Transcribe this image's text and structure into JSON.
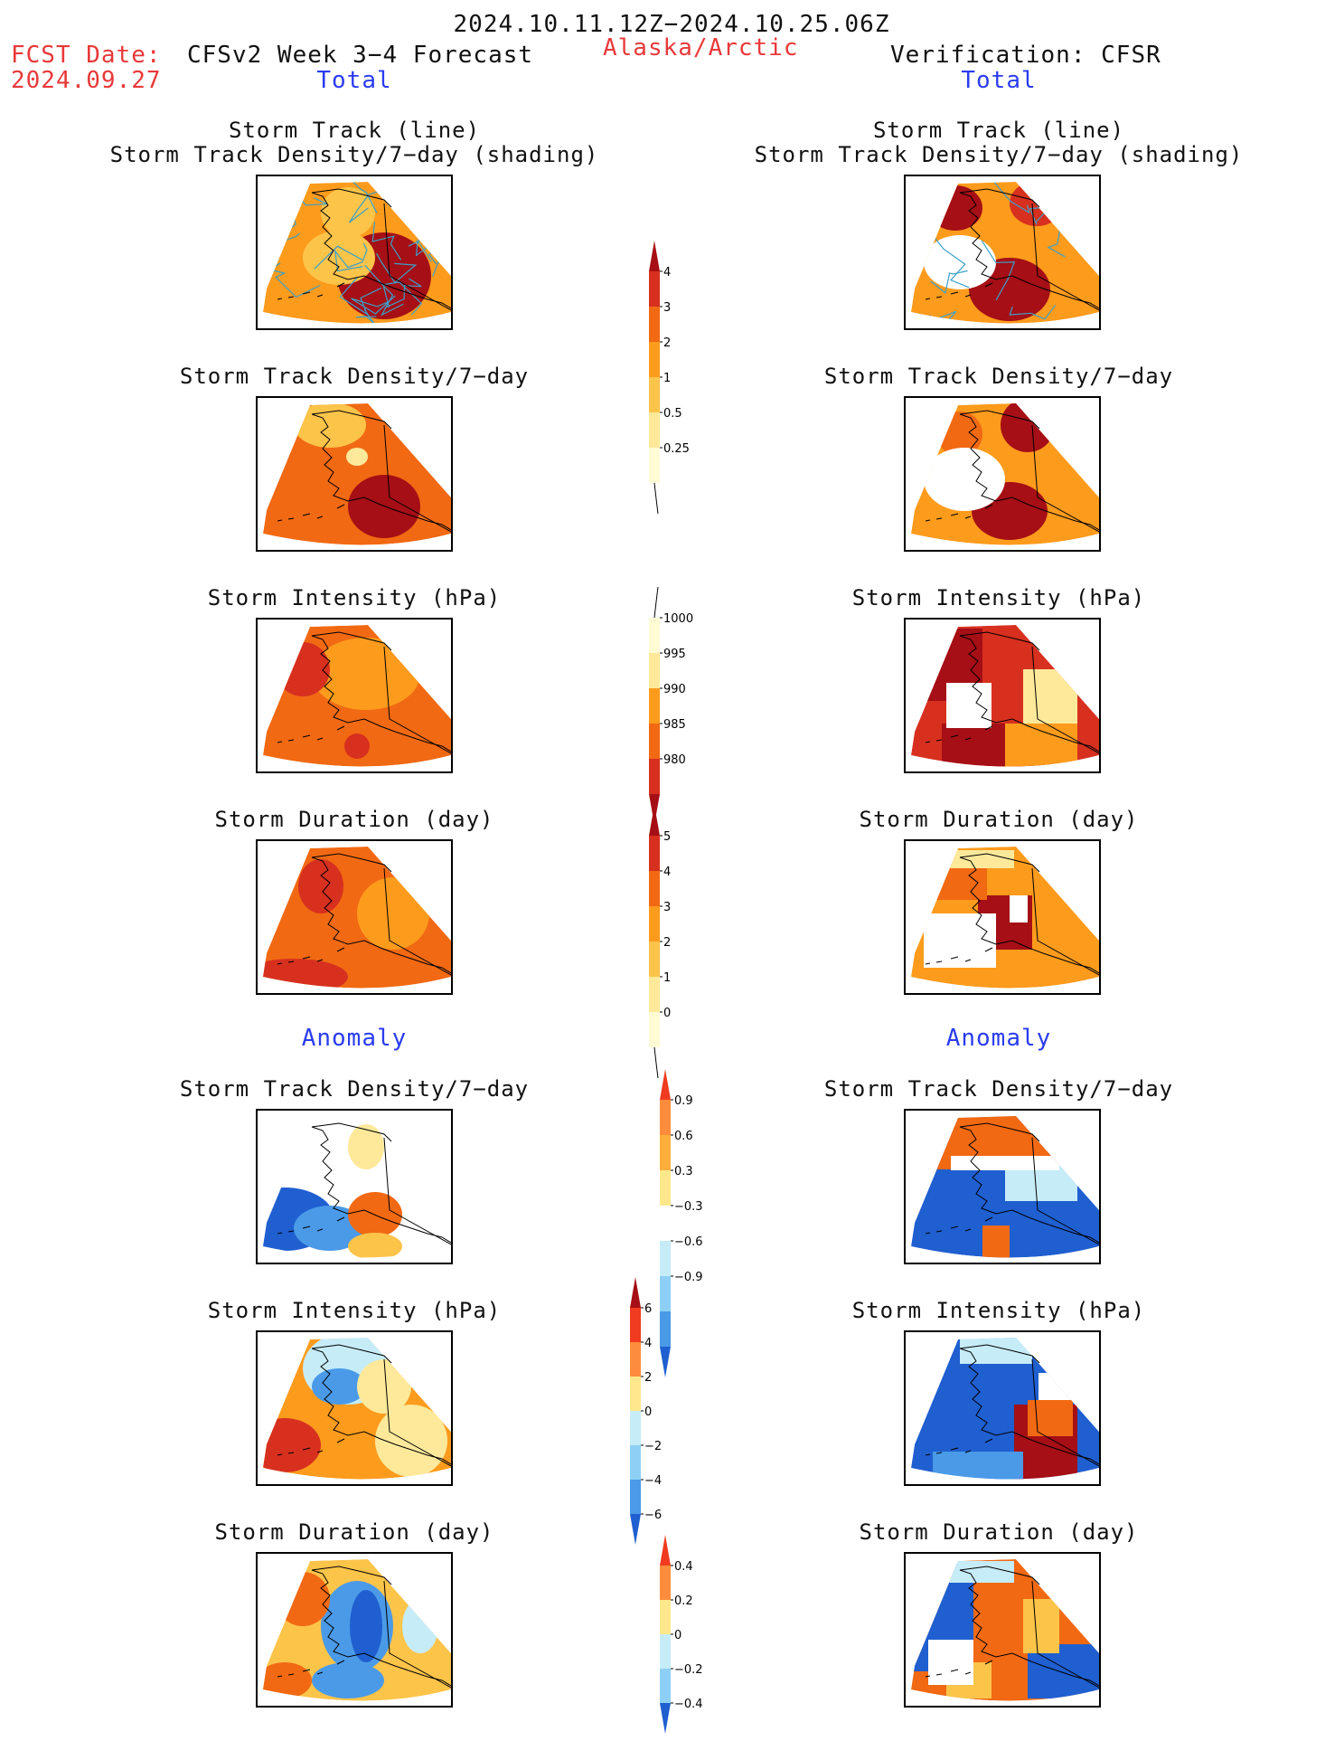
{
  "header": {
    "period": "2024.10.11.12Z−2024.10.25.06Z",
    "fcst_label": "FCST Date:",
    "fcst_date": "2024.09.27",
    "model_title": "CFSv2 Week 3−4 Forecast",
    "region": "Alaska/Arctic",
    "verification": "Verification: CFSR",
    "left_total": "Total",
    "right_total": "Total",
    "left_anomaly": "Anomaly",
    "right_anomaly": "Anomaly"
  },
  "panels": {
    "track_line": "Storm Track (line)",
    "track_shading": "Storm Track Density/7−day (shading)",
    "track_density": "Storm Track Density/7−day",
    "intensity": "Storm Intensity (hPa)",
    "duration": "Storm Duration (day)"
  },
  "colorbars": {
    "density_total": {
      "labels": [
        "4",
        "3",
        "2",
        "1",
        "0.5",
        "0.25"
      ],
      "colors": [
        "#a50f15",
        "#d7301f",
        "#f16913",
        "#fd9b1d",
        "#fdc44a",
        "#fee99a",
        "#fffbd5"
      ]
    },
    "intensity_total": {
      "labels": [
        "1000",
        "995",
        "990",
        "985",
        "980"
      ],
      "colors": [
        "#fffbd5",
        "#fee99a",
        "#fd9b1d",
        "#f16913",
        "#d7301f",
        "#a50f15"
      ]
    },
    "duration_total": {
      "labels": [
        "5",
        "4",
        "3",
        "2",
        "1",
        "0"
      ],
      "colors": [
        "#a50f15",
        "#d7301f",
        "#f16913",
        "#fd9b1d",
        "#fdc44a",
        "#fee99a",
        "#fffbd5"
      ]
    },
    "density_anom": {
      "labels": [
        "0.9",
        "0.6",
        "0.3",
        "−0.3",
        "−0.6",
        "−0.9"
      ],
      "colors": [
        "#f03b20",
        "#fd8d3c",
        "#fdae3b",
        "#fee88b",
        "#ffffff",
        "#c6ecf8",
        "#8ed0f5",
        "#4a9ae8",
        "#1f5fd0"
      ]
    },
    "intensity_anom": {
      "labels": [
        "6",
        "4",
        "2",
        "0",
        "−2",
        "−4",
        "−6"
      ],
      "colors": [
        "#a50f15",
        "#f03b20",
        "#fd8d3c",
        "#fee88b",
        "#c6ecf8",
        "#8ed0f5",
        "#4a9ae8",
        "#1f5fd0"
      ]
    },
    "duration_anom": {
      "labels": [
        "0.4",
        "0.2",
        "0",
        "−0.2",
        "−0.4"
      ],
      "colors": [
        "#f03b20",
        "#fd8d3c",
        "#fee88b",
        "#c6ecf8",
        "#8ed0f5",
        "#1f5fd0"
      ]
    }
  },
  "map_colors": {
    "deep_red": "#a50f15",
    "red": "#d7301f",
    "red_orange": "#f16913",
    "orange": "#fd9b1d",
    "light_orange": "#fdc44a",
    "pale_yellow": "#fee99a",
    "light_blue": "#c6ecf8",
    "mid_blue": "#4a9ae8",
    "dark_blue": "#1f5fd0",
    "track_line": "#3aa0c8"
  }
}
